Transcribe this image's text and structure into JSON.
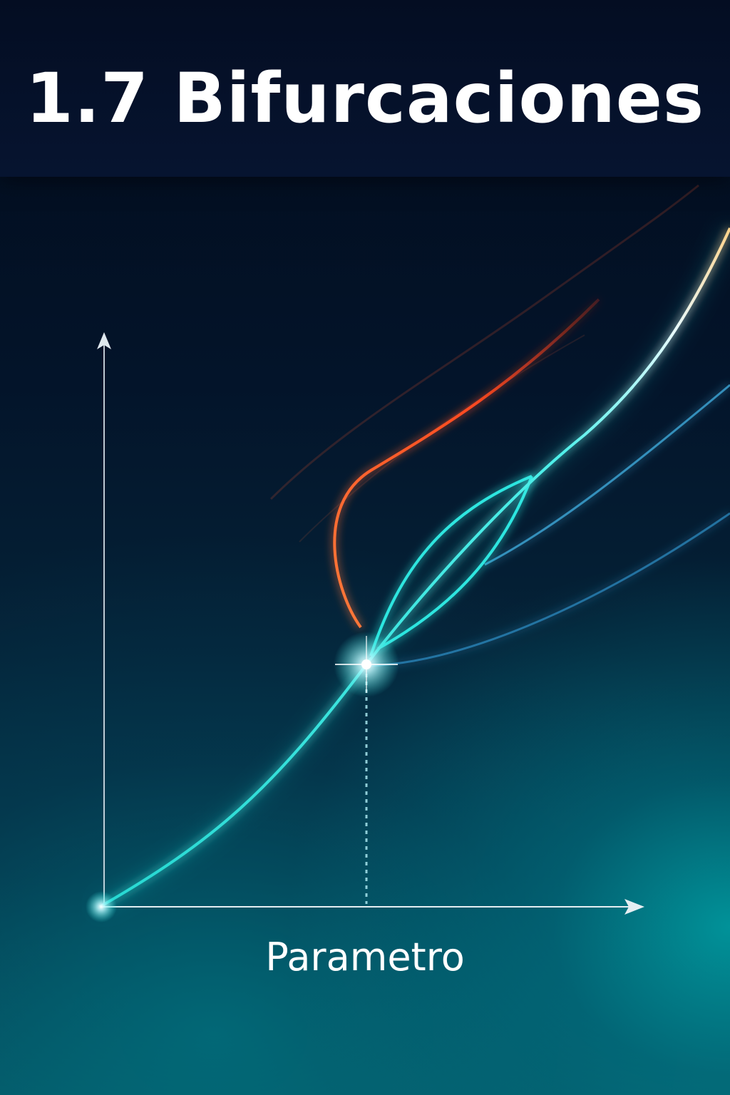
{
  "header": {
    "title": "1.7 Bifurcaciones"
  },
  "diagram": {
    "x_axis_label": "Parametro",
    "colors": {
      "stable_branch": "#2fe6e0",
      "upper_branch": "#ff5a2a",
      "outer_branch": "#3fa7d8",
      "axis": "#e6eef2",
      "glow": "#ffffff"
    },
    "icons": [
      "x-axis-arrow-icon",
      "y-axis-arrow-icon",
      "bifurcation-point-icon"
    ]
  }
}
